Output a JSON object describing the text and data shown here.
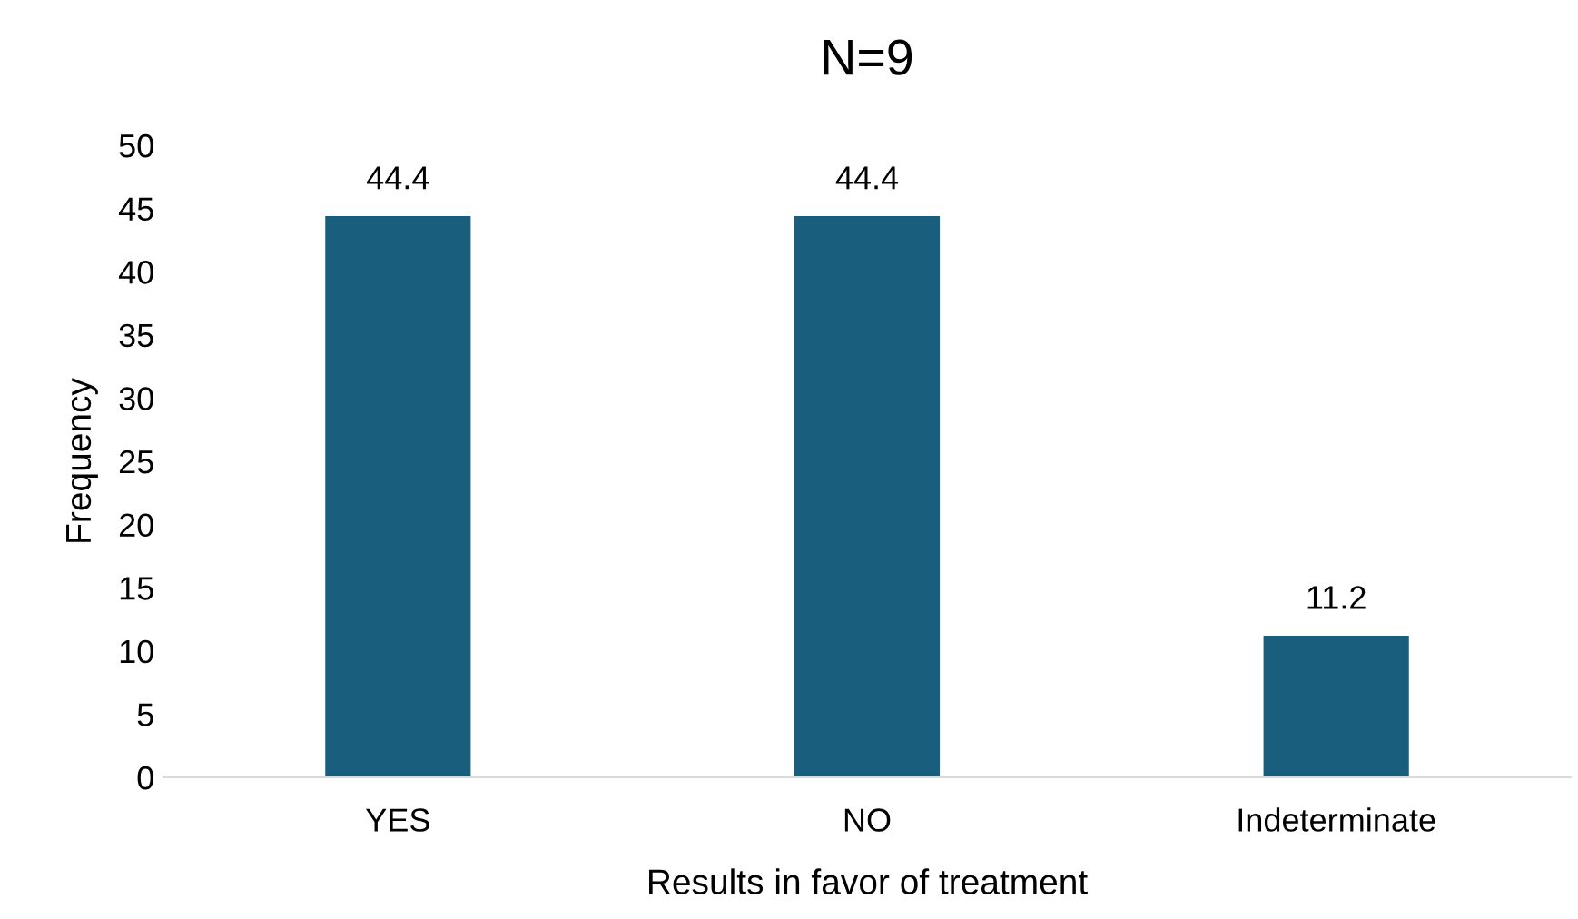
{
  "chart_data": {
    "type": "bar",
    "title": "N=9",
    "xlabel": "Results in favor of treatment",
    "ylabel": "Frequency",
    "categories": [
      "YES",
      "NO",
      "Indeterminate"
    ],
    "series": [
      {
        "color": "#1a5e7e",
        "values": [
          44.4,
          44.4,
          11.2
        ]
      }
    ],
    "ylim": [
      0,
      50
    ],
    "yticks": [
      0,
      5,
      10,
      15,
      20,
      25,
      30,
      35,
      40,
      45,
      50
    ],
    "grid": false,
    "data_labels": true
  }
}
